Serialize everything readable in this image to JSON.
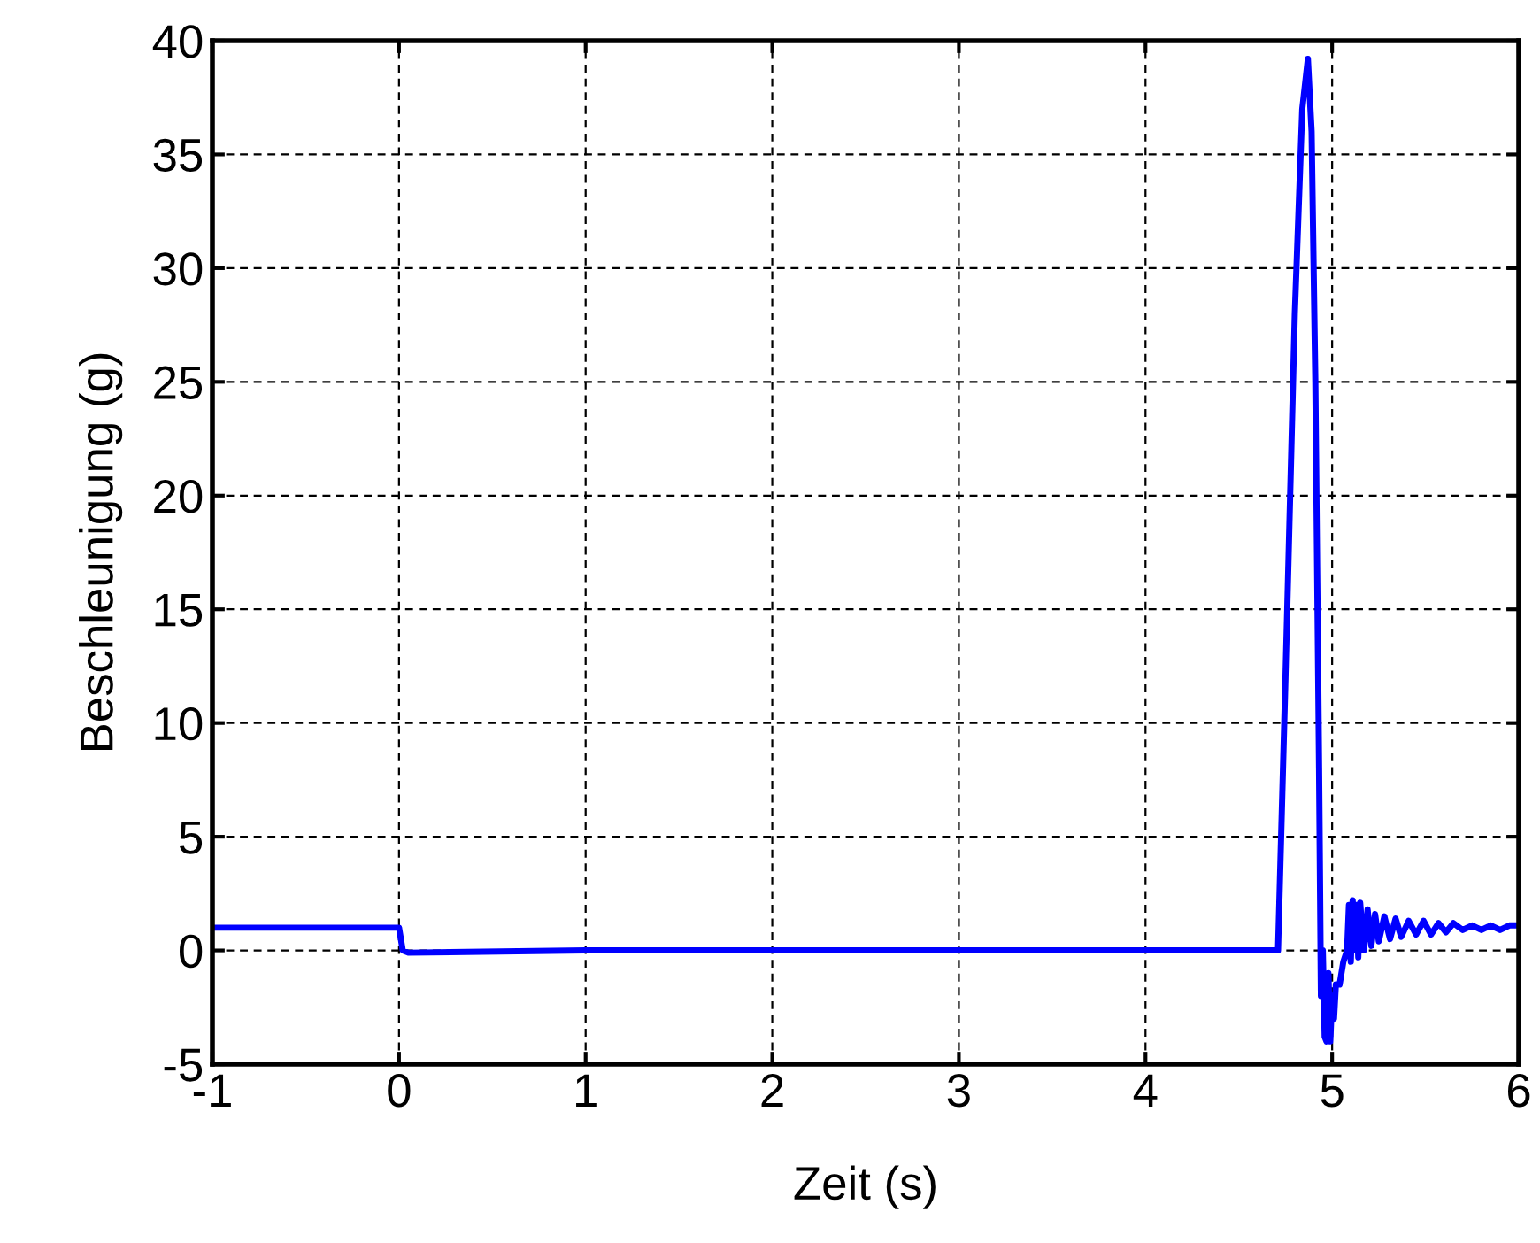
{
  "chart_data": {
    "type": "line",
    "xlabel": "Zeit (s)",
    "ylabel": "Beschleunigung (g)",
    "xlim": [
      -1,
      6
    ],
    "ylim": [
      -5,
      40
    ],
    "xticks": [
      -1,
      0,
      1,
      2,
      3,
      4,
      5,
      6
    ],
    "yticks": [
      -5,
      0,
      5,
      10,
      15,
      20,
      25,
      30,
      35,
      40
    ],
    "grid": true,
    "line_style": "solid",
    "marker": "none",
    "series": [
      {
        "color": "#0000ff",
        "x": [
          -1,
          0,
          0.02,
          0.05,
          1,
          2,
          3,
          4,
          4.71,
          4.75,
          4.8,
          4.84,
          4.87,
          4.89,
          4.91,
          4.93,
          4.94,
          4.95,
          4.96,
          4.97,
          4.98,
          4.99,
          5.0,
          5.01,
          5.02,
          5.04,
          5.06,
          5.08,
          5.09,
          5.1,
          5.11,
          5.12,
          5.13,
          5.14,
          5.15,
          5.17,
          5.19,
          5.21,
          5.23,
          5.25,
          5.28,
          5.31,
          5.34,
          5.37,
          5.41,
          5.45,
          5.49,
          5.53,
          5.57,
          5.61,
          5.65,
          5.7,
          5.75,
          5.8,
          5.85,
          5.9,
          5.95,
          6
        ],
        "values": [
          1,
          1,
          0,
          -0.1,
          0,
          0,
          0,
          0,
          0,
          12,
          28,
          37,
          39.2,
          36,
          25,
          8,
          -2,
          0,
          -3.8,
          -4,
          -1,
          -4,
          -2,
          -3,
          -1.5,
          -1.5,
          -0.5,
          0,
          2,
          -0.5,
          2.2,
          0,
          2,
          -0.3,
          2.1,
          0,
          1.8,
          0.2,
          1.6,
          0.4,
          1.5,
          0.5,
          1.4,
          0.6,
          1.3,
          0.7,
          1.3,
          0.7,
          1.2,
          0.8,
          1.2,
          0.9,
          1.1,
          0.9,
          1.1,
          0.9,
          1.1,
          1.1
        ]
      }
    ]
  }
}
